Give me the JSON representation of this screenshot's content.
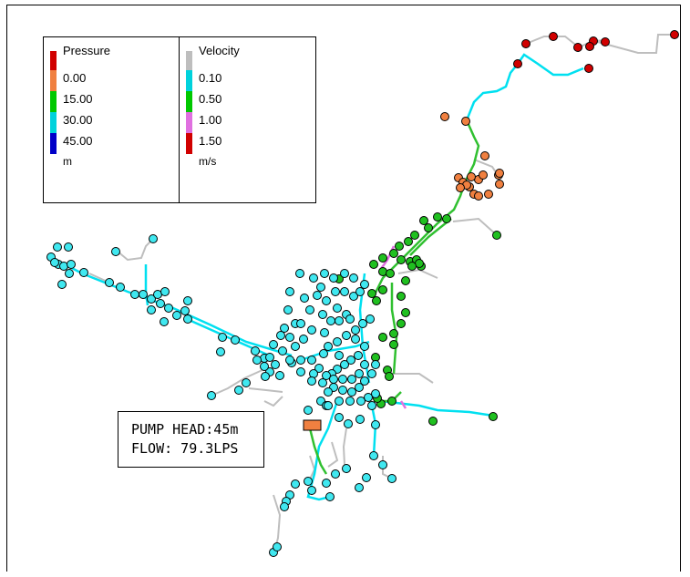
{
  "legend": {
    "pressure": {
      "title": "Pressure",
      "unit": "m",
      "items": [
        {
          "label": "0.00",
          "color": "#d10000"
        },
        {
          "label": "15.00",
          "color": "#f08040"
        },
        {
          "label": "30.00",
          "color": "#00c800"
        },
        {
          "label": "45.00",
          "color": "#00d2dc"
        }
      ],
      "top_color": "#d10000",
      "bottom_color": "#0000c8"
    },
    "velocity": {
      "title": "Velocity",
      "unit": "m/s",
      "items": [
        {
          "label": "0.10",
          "color": "#bebebe"
        },
        {
          "label": "0.50",
          "color": "#00d2dc"
        },
        {
          "label": "1.00",
          "color": "#00c800"
        },
        {
          "label": "1.50",
          "color": "#e070e0"
        }
      ],
      "top_color": "#bebebe",
      "bottom_color": "#d10000"
    }
  },
  "pump": {
    "head_label": "PUMP HEAD:45m",
    "flow_label": "FLOW: 79.3LPS",
    "color": "#f08040"
  },
  "colors": {
    "node_red": "#d10000",
    "node_orange": "#f08040",
    "node_green": "#20c020",
    "node_cyan": "#40e8f0",
    "pipe_grey": "#bebebe",
    "pipe_cyan": "#00e0f0",
    "pipe_green": "#30c030",
    "pipe_magenta": "#e070e0"
  }
}
